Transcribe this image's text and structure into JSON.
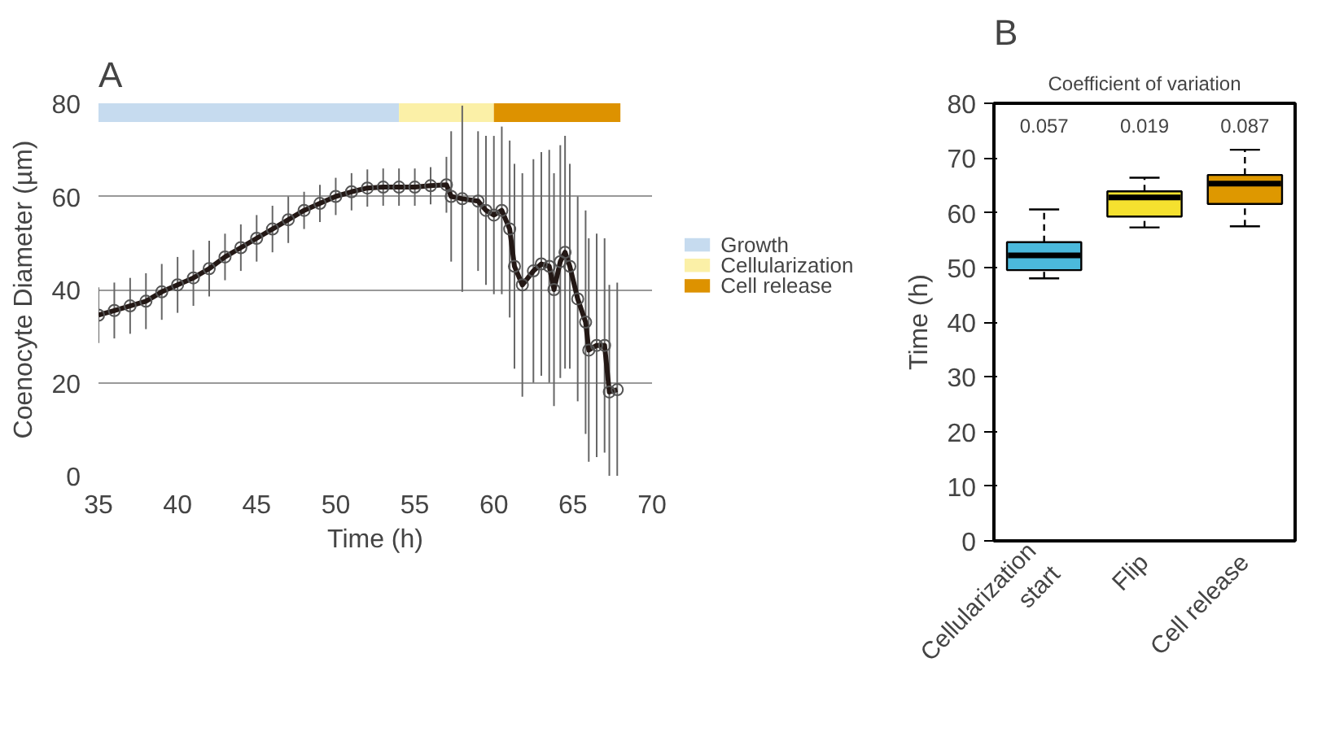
{
  "chart_data": [
    {
      "type": "line",
      "title": "A",
      "xlabel": "Time (h)",
      "ylabel": "Coenocyte Diameter (µm)",
      "xlim": [
        35,
        70
      ],
      "xticks": [
        35,
        40,
        45,
        50,
        55,
        60,
        65,
        70
      ],
      "ylim": [
        0,
        80
      ],
      "yticks": [
        0,
        20,
        40,
        60,
        80
      ],
      "grid": "y",
      "legend": "right",
      "marker": "circle",
      "line_style": "solid",
      "series": [
        {
          "color": "#231815",
          "x": [
            35,
            36,
            37,
            38,
            39,
            40,
            41,
            42,
            43,
            44,
            45,
            46,
            47,
            48,
            49,
            50,
            51,
            52,
            53,
            54,
            55,
            56,
            57,
            57.3,
            58,
            59,
            59.5,
            60,
            60.5,
            61,
            61.3,
            61.8,
            62.5,
            63,
            63.5,
            63.8,
            64.2,
            64.5,
            64.8,
            65.3,
            65.8,
            66,
            66.5,
            67,
            67.3,
            67.8
          ],
          "values": [
            34.5,
            35.5,
            36.5,
            37.5,
            39.5,
            41,
            42.5,
            44.5,
            47,
            49,
            51,
            53,
            55,
            57,
            58.5,
            60,
            61,
            61.8,
            62,
            62,
            62,
            62.3,
            62.5,
            60,
            59.5,
            59,
            57,
            56,
            57,
            53,
            45,
            41,
            44,
            45.5,
            45,
            40,
            46,
            48,
            45,
            38,
            33,
            27,
            28,
            28,
            18,
            18.5
          ],
          "errors": [
            6,
            6,
            6,
            6,
            6,
            6,
            6,
            6,
            5,
            5,
            5,
            5,
            5,
            4,
            4,
            4,
            4,
            4,
            4,
            4,
            4,
            4,
            6,
            14,
            20,
            15,
            16,
            17,
            18,
            19,
            22,
            24,
            24,
            24,
            25,
            25,
            25,
            25,
            22,
            22,
            24,
            24,
            24,
            23,
            23,
            23
          ]
        }
      ],
      "bands": [
        {
          "axis": "x",
          "from": 35,
          "to": 54,
          "label": "Growth",
          "color": "#c6dbef"
        },
        {
          "axis": "x",
          "from": 54,
          "to": 60,
          "label": "Cellularization",
          "color": "#fbf0a7"
        },
        {
          "axis": "x",
          "from": 60,
          "to": 68,
          "label": "Cell release",
          "color": "#dd9200"
        }
      ]
    },
    {
      "type": "box",
      "title": "B",
      "subtitle": "Coefficient of variation",
      "ylabel": "Time (h)",
      "categories": [
        "Cellularization start",
        "Flip",
        "Cell release"
      ],
      "ylim": [
        0,
        80
      ],
      "yticks": [
        0,
        10,
        20,
        30,
        40,
        50,
        60,
        70,
        80
      ],
      "grid": false,
      "colors": [
        "#4bb9dc",
        "#f5e12f",
        "#de9800"
      ],
      "boxes": [
        {
          "low": 48,
          "q1": 49.5,
          "median": 52.2,
          "q3": 54.6,
          "high": 60.6
        },
        {
          "low": 57.3,
          "q1": 59.3,
          "median": 62.8,
          "q3": 63.9,
          "high": 66.4
        },
        {
          "low": 57.5,
          "q1": 61.6,
          "median": 65.3,
          "q3": 66.9,
          "high": 71.5
        }
      ],
      "annotations": [
        "0.057",
        "0.019",
        "0.087"
      ]
    }
  ]
}
